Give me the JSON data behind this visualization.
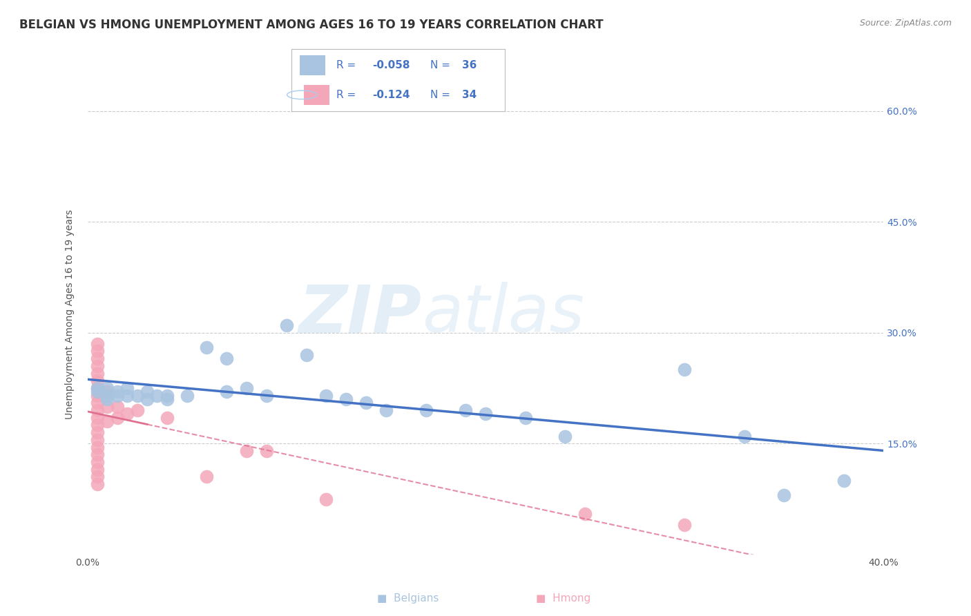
{
  "title": "BELGIAN VS HMONG UNEMPLOYMENT AMONG AGES 16 TO 19 YEARS CORRELATION CHART",
  "source": "Source: ZipAtlas.com",
  "ylabel": "Unemployment Among Ages 16 to 19 years",
  "xlim": [
    0.0,
    0.4
  ],
  "ylim": [
    0.0,
    0.65
  ],
  "xticks": [
    0.0,
    0.1,
    0.2,
    0.3,
    0.4
  ],
  "xtick_labels": [
    "0.0%",
    "",
    "",
    "",
    "40.0%"
  ],
  "ytick_labels_right": [
    "15.0%",
    "30.0%",
    "45.0%",
    "60.0%"
  ],
  "ytick_vals_right": [
    0.15,
    0.3,
    0.45,
    0.6
  ],
  "belgian_color": "#a8c4e0",
  "hmong_color": "#f4a7b9",
  "belgian_line_color": "#4472c4",
  "hmong_line_color": "#e07090",
  "R_belgian": -0.058,
  "N_belgian": 36,
  "R_hmong": -0.124,
  "N_hmong": 34,
  "legend_color": "#4472c4",
  "watermark_top": "ZIP",
  "watermark_bottom": "atlas",
  "belgians_x": [
    0.005,
    0.005,
    0.01,
    0.01,
    0.01,
    0.015,
    0.015,
    0.02,
    0.02,
    0.025,
    0.03,
    0.03,
    0.035,
    0.04,
    0.04,
    0.05,
    0.06,
    0.07,
    0.07,
    0.08,
    0.09,
    0.1,
    0.11,
    0.12,
    0.13,
    0.14,
    0.15,
    0.17,
    0.19,
    0.2,
    0.22,
    0.24,
    0.3,
    0.33,
    0.35,
    0.38
  ],
  "belgians_y": [
    0.225,
    0.22,
    0.225,
    0.215,
    0.21,
    0.22,
    0.215,
    0.225,
    0.215,
    0.215,
    0.22,
    0.21,
    0.215,
    0.215,
    0.21,
    0.215,
    0.28,
    0.265,
    0.22,
    0.225,
    0.215,
    0.31,
    0.27,
    0.215,
    0.21,
    0.205,
    0.195,
    0.195,
    0.195,
    0.19,
    0.185,
    0.16,
    0.25,
    0.16,
    0.08,
    0.1
  ],
  "hmong_x": [
    0.005,
    0.005,
    0.005,
    0.005,
    0.005,
    0.005,
    0.005,
    0.005,
    0.005,
    0.005,
    0.005,
    0.005,
    0.005,
    0.005,
    0.005,
    0.005,
    0.005,
    0.005,
    0.005,
    0.005,
    0.01,
    0.01,
    0.01,
    0.015,
    0.015,
    0.02,
    0.025,
    0.04,
    0.06,
    0.08,
    0.09,
    0.12,
    0.25,
    0.3
  ],
  "hmong_y": [
    0.285,
    0.275,
    0.265,
    0.255,
    0.245,
    0.235,
    0.225,
    0.215,
    0.205,
    0.195,
    0.185,
    0.175,
    0.165,
    0.155,
    0.145,
    0.135,
    0.125,
    0.115,
    0.105,
    0.095,
    0.22,
    0.2,
    0.18,
    0.2,
    0.185,
    0.19,
    0.195,
    0.185,
    0.105,
    0.14,
    0.14,
    0.075,
    0.055,
    0.04
  ],
  "background_color": "#ffffff",
  "grid_color": "#cccccc",
  "title_color": "#333333",
  "title_fontsize": 12,
  "axis_label_fontsize": 10,
  "tick_fontsize": 10
}
